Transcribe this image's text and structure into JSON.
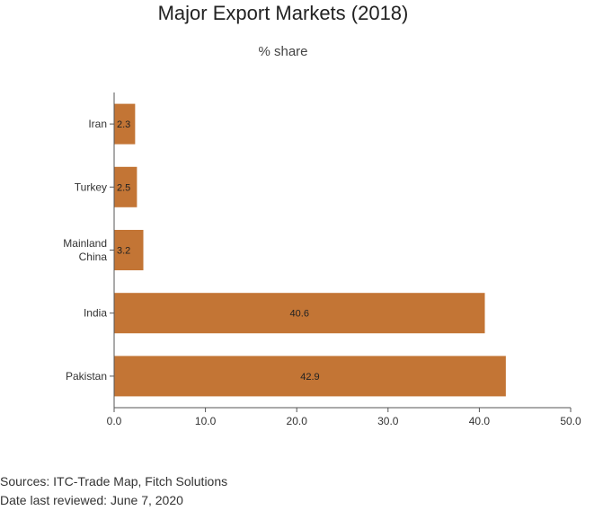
{
  "chart_data": {
    "type": "bar",
    "orientation": "horizontal",
    "title": "Major Export Markets (2018)",
    "subtitle": "% share",
    "categories": [
      "Iran",
      "Turkey",
      "Mainland China",
      "India",
      "Pakistan"
    ],
    "category_lines": [
      [
        "Iran"
      ],
      [
        "Turkey"
      ],
      [
        "Mainland",
        "China"
      ],
      [
        "India"
      ],
      [
        "Pakistan"
      ]
    ],
    "values": [
      2.3,
      2.5,
      3.2,
      40.6,
      42.9
    ],
    "value_labels": [
      "2.3",
      "2.5",
      "3.2",
      "40.6",
      "42.9"
    ],
    "xlim": [
      0,
      50
    ],
    "x_ticks": [
      0,
      10,
      20,
      30,
      40,
      50
    ],
    "x_tick_labels": [
      "0.0",
      "10.0",
      "20.0",
      "30.0",
      "40.0",
      "50.0"
    ],
    "grid": false,
    "bar_color": "#C37535"
  },
  "footer": {
    "sources": "Sources: ITC-Trade Map, Fitch Solutions",
    "reviewed": "Date last reviewed: June 7, 2020"
  }
}
